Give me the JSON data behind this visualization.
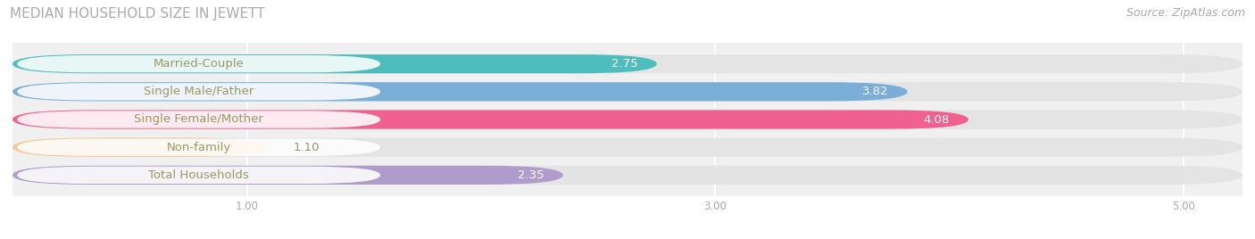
{
  "title": "MEDIAN HOUSEHOLD SIZE IN JEWETT",
  "source": "Source: ZipAtlas.com",
  "categories": [
    "Married-Couple",
    "Single Male/Father",
    "Single Female/Mother",
    "Non-family",
    "Total Households"
  ],
  "values": [
    2.75,
    3.82,
    4.08,
    1.1,
    2.35
  ],
  "bar_colors": [
    "#4dbdbd",
    "#7aaed6",
    "#f06090",
    "#f5c896",
    "#b09ccc"
  ],
  "value_colors": [
    "white",
    "white",
    "white",
    "#999966",
    "white"
  ],
  "xlim_min": 0.0,
  "xlim_max": 5.25,
  "xticks": [
    1.0,
    3.0,
    5.0
  ],
  "title_fontsize": 11,
  "source_fontsize": 9,
  "label_fontsize": 9.5,
  "value_fontsize": 9.5,
  "bar_height": 0.68,
  "fig_bg_color": "#ffffff",
  "plot_bg_color": "#f0f0f0",
  "bar_bg_color": "#e4e4e4",
  "label_text_color": "#999966"
}
